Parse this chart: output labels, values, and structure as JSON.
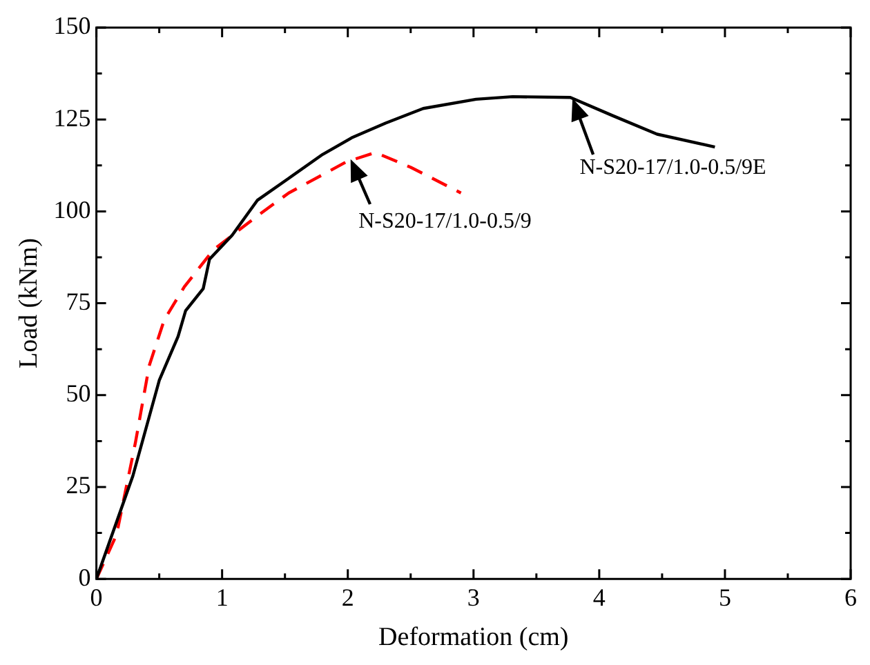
{
  "chart_data": {
    "type": "line",
    "xlabel": "Deformation (cm)",
    "ylabel": "Load (kNm)",
    "xlim": [
      0,
      6
    ],
    "ylim": [
      0,
      150
    ],
    "xticks": [
      0,
      {
        "value": 0.5,
        "label": null
      },
      1,
      {
        "value": 1.5,
        "label": null
      },
      2,
      {
        "value": 2.5,
        "label": null
      },
      3,
      {
        "value": 3.5,
        "label": null
      },
      4,
      {
        "value": 4.5,
        "label": null
      },
      5,
      {
        "value": 5.5,
        "label": null
      },
      6
    ],
    "yticks": [
      0,
      {
        "value": 12.5,
        "label": null
      },
      25,
      {
        "value": 37.5,
        "label": null
      },
      50,
      {
        "value": 62.5,
        "label": null
      },
      75,
      {
        "value": 87.5,
        "label": null
      },
      100,
      {
        "value": 112.5,
        "label": null
      },
      125,
      {
        "value": 137.5,
        "label": null
      },
      150
    ],
    "grid": false,
    "legend": false,
    "marker": "none",
    "series": [
      {
        "color": "#000000",
        "line_style": "solid",
        "x": [
          0,
          0.29,
          0.5,
          0.65,
          0.71,
          0.85,
          0.9,
          1.08,
          1.28,
          1.53,
          1.8,
          2.03,
          2.3,
          2.6,
          3.02,
          3.31,
          3.77,
          4.11,
          4.46,
          4.92
        ],
        "values": [
          0,
          28,
          54,
          66,
          73,
          79,
          87,
          93.5,
          103,
          109,
          115.5,
          120,
          124,
          128,
          130.5,
          131.2,
          131,
          126,
          121,
          117.5
        ]
      },
      {
        "color": "#ff0000",
        "line_style": "dashed",
        "x": [
          0,
          0.16,
          0.31,
          0.42,
          0.54,
          0.7,
          0.93,
          1.27,
          1.53,
          1.99,
          2.22,
          2.5,
          2.9
        ],
        "values": [
          0,
          12,
          37,
          58,
          70.5,
          79.5,
          89.5,
          98.5,
          105,
          113.5,
          116,
          112,
          105
        ]
      }
    ],
    "annotations": [
      {
        "text": "N-S20-17/1.0-0.5/9",
        "x": 2.03,
        "y": 114
      },
      {
        "text": "N-S20-17/1.0-0.5/9E",
        "x": 3.8,
        "y": 130.5
      }
    ]
  }
}
